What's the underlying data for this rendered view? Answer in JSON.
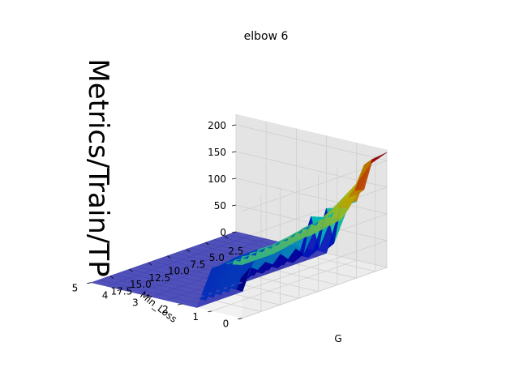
{
  "chart_data": {
    "type": "surface-3d",
    "title": "elbow 6",
    "xlabel": "G",
    "ylabel": "Min_Loss",
    "zlabel": "Metrics/Train/TP",
    "x_ticks": [
      "2.5",
      "5.0",
      "7.5",
      "10.0",
      "12.5",
      "15.0",
      "17.5"
    ],
    "y_ticks": [
      "0",
      "1",
      "2",
      "3",
      "4",
      "5"
    ],
    "z_ticks": [
      "0",
      "50",
      "100",
      "150",
      "200"
    ],
    "xlim": [
      1,
      20
    ],
    "ylim": [
      0,
      5
    ],
    "zlim": [
      0,
      220
    ],
    "colormap": "jet",
    "grid": true,
    "surface": {
      "G": [
        1,
        2,
        3,
        4,
        5,
        6,
        7,
        8,
        9,
        10,
        11,
        12,
        13,
        14,
        15,
        16,
        17,
        18,
        19,
        20
      ],
      "Min_Loss": [
        0,
        0.5,
        1,
        1.5,
        2,
        2.5,
        3,
        3.5,
        4,
        4.5,
        5
      ],
      "values": [
        [
          215,
          210,
          205,
          160,
          155,
          135,
          120,
          117,
          115,
          112,
          110,
          110,
          108,
          105,
          102,
          100,
          100,
          100,
          100,
          100
        ],
        [
          195,
          190,
          160,
          150,
          140,
          130,
          118,
          115,
          113,
          110,
          108,
          105,
          103,
          100,
          100,
          98,
          96,
          95,
          95,
          95
        ],
        [
          110,
          110,
          108,
          105,
          100,
          98,
          96,
          95,
          90,
          85,
          85,
          82,
          82,
          85,
          85,
          85,
          85,
          82,
          80,
          80
        ],
        [
          100,
          30,
          100,
          30,
          95,
          30,
          45,
          30,
          45,
          30,
          40,
          30,
          40,
          0,
          0,
          0,
          0,
          0,
          0,
          0
        ],
        [
          0,
          0,
          0,
          0,
          0,
          0,
          0,
          0,
          0,
          0,
          0,
          0,
          0,
          0,
          0,
          0,
          0,
          0,
          0,
          0
        ],
        [
          0,
          0,
          0,
          0,
          0,
          0,
          0,
          0,
          0,
          0,
          0,
          0,
          0,
          0,
          0,
          0,
          0,
          0,
          0,
          0
        ],
        [
          0,
          0,
          0,
          0,
          0,
          0,
          0,
          0,
          0,
          0,
          0,
          0,
          0,
          0,
          0,
          0,
          0,
          0,
          0,
          0
        ],
        [
          0,
          0,
          0,
          0,
          0,
          0,
          0,
          0,
          0,
          0,
          0,
          0,
          0,
          0,
          0,
          0,
          0,
          0,
          0,
          0
        ],
        [
          0,
          0,
          0,
          0,
          0,
          0,
          0,
          0,
          0,
          0,
          0,
          0,
          0,
          0,
          0,
          0,
          0,
          0,
          0,
          0
        ],
        [
          0,
          0,
          0,
          0,
          0,
          0,
          0,
          0,
          0,
          0,
          0,
          0,
          0,
          0,
          0,
          0,
          0,
          0,
          0,
          0
        ],
        [
          0,
          0,
          0,
          0,
          0,
          0,
          0,
          0,
          0,
          0,
          0,
          0,
          0,
          0,
          0,
          0,
          0,
          0,
          0,
          0
        ]
      ]
    }
  }
}
